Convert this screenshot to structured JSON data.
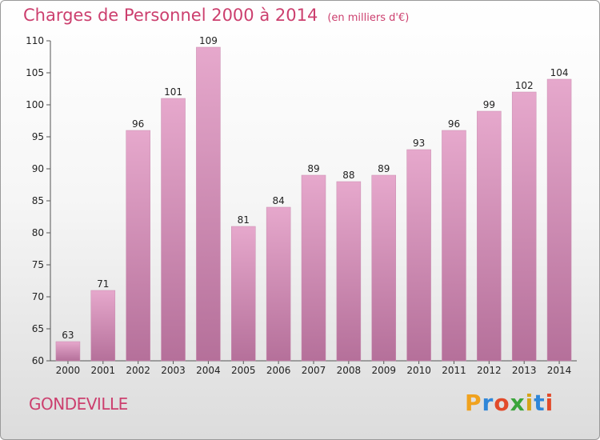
{
  "header": {
    "title": "Charges de Personnel 2000 à 2014",
    "unit": "(en milliers d'€)"
  },
  "footer": {
    "commune": "GONDEVILLE",
    "logo": "Proxiti"
  },
  "colors": {
    "accent": "#cc3f6e",
    "bar_top": "#e6a8cc",
    "bar_bottom": "#b5709a",
    "logo_letters": [
      "#f0a21e",
      "#2f86d8",
      "#e24a2a",
      "#3aa53a",
      "#d6a419",
      "#2f86d8",
      "#e24a2a"
    ]
  },
  "chart_data": {
    "type": "bar",
    "title": "Charges de Personnel 2000 à 2014",
    "subtitle": "(en milliers d'€)",
    "categories": [
      "2000",
      "2001",
      "2002",
      "2003",
      "2004",
      "2005",
      "2006",
      "2007",
      "2008",
      "2009",
      "2010",
      "2011",
      "2012",
      "2013",
      "2014"
    ],
    "values": [
      63,
      71,
      96,
      101,
      109,
      81,
      84,
      89,
      88,
      89,
      93,
      96,
      99,
      102,
      104
    ],
    "xlabel": "",
    "ylabel": "",
    "ylim": [
      60,
      110
    ],
    "yticks": [
      60,
      65,
      70,
      75,
      80,
      85,
      90,
      95,
      100,
      105,
      110
    ],
    "grid": false,
    "legend": "none"
  }
}
